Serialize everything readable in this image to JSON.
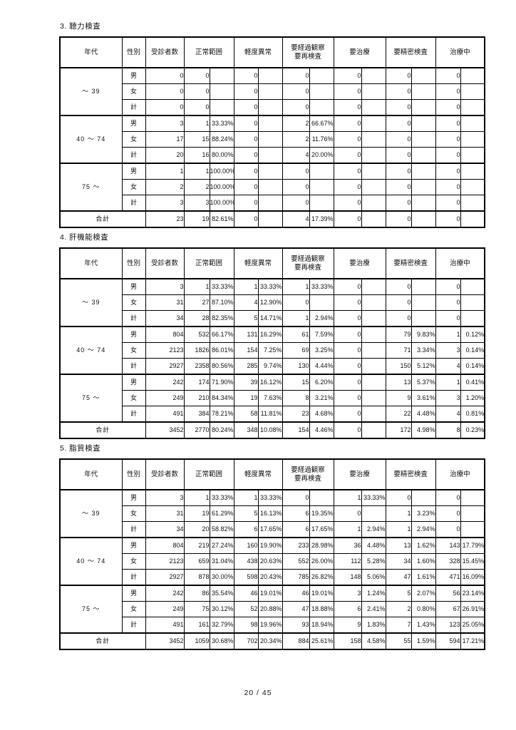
{
  "footer": {
    "page_indicator": "20 / 45"
  },
  "headers": [
    "年代",
    "性別",
    "受診者数",
    "正常範囲",
    "軽度異常",
    "要経過観察\n要再検査",
    "要治療",
    "要精密検査",
    "治療中"
  ],
  "tables": [
    {
      "title": "3. 聴力検査",
      "groups": [
        {
          "age": "～ 39",
          "rows": [
            {
              "sex": "男",
              "n": "0",
              "pairs": [
                [
                  "0",
                  ""
                ],
                [
                  "0",
                  ""
                ],
                [
                  "0",
                  ""
                ],
                [
                  "0",
                  ""
                ],
                [
                  "0",
                  ""
                ],
                [
                  "0",
                  ""
                ]
              ]
            },
            {
              "sex": "女",
              "n": "0",
              "pairs": [
                [
                  "0",
                  ""
                ],
                [
                  "0",
                  ""
                ],
                [
                  "0",
                  ""
                ],
                [
                  "0",
                  ""
                ],
                [
                  "0",
                  ""
                ],
                [
                  "0",
                  ""
                ]
              ]
            },
            {
              "sex": "計",
              "n": "0",
              "pairs": [
                [
                  "0",
                  ""
                ],
                [
                  "0",
                  ""
                ],
                [
                  "0",
                  ""
                ],
                [
                  "0",
                  ""
                ],
                [
                  "0",
                  ""
                ],
                [
                  "0",
                  ""
                ]
              ]
            }
          ]
        },
        {
          "age": "40 ～ 74",
          "rows": [
            {
              "sex": "男",
              "n": "3",
              "pairs": [
                [
                  "1",
                  "33.33%"
                ],
                [
                  "0",
                  ""
                ],
                [
                  "2",
                  "66.67%"
                ],
                [
                  "0",
                  ""
                ],
                [
                  "0",
                  ""
                ],
                [
                  "0",
                  ""
                ]
              ]
            },
            {
              "sex": "女",
              "n": "17",
              "pairs": [
                [
                  "15",
                  "88.24%"
                ],
                [
                  "0",
                  ""
                ],
                [
                  "2",
                  "11.76%"
                ],
                [
                  "0",
                  ""
                ],
                [
                  "0",
                  ""
                ],
                [
                  "0",
                  ""
                ]
              ]
            },
            {
              "sex": "計",
              "n": "20",
              "pairs": [
                [
                  "16",
                  "80.00%"
                ],
                [
                  "0",
                  ""
                ],
                [
                  "4",
                  "20.00%"
                ],
                [
                  "0",
                  ""
                ],
                [
                  "0",
                  ""
                ],
                [
                  "0",
                  ""
                ]
              ]
            }
          ]
        },
        {
          "age": "75 ～",
          "rows": [
            {
              "sex": "男",
              "n": "1",
              "pairs": [
                [
                  "1",
                  "100.00%"
                ],
                [
                  "0",
                  ""
                ],
                [
                  "0",
                  ""
                ],
                [
                  "0",
                  ""
                ],
                [
                  "0",
                  ""
                ],
                [
                  "0",
                  ""
                ]
              ]
            },
            {
              "sex": "女",
              "n": "2",
              "pairs": [
                [
                  "2",
                  "100.00%"
                ],
                [
                  "0",
                  ""
                ],
                [
                  "0",
                  ""
                ],
                [
                  "0",
                  ""
                ],
                [
                  "0",
                  ""
                ],
                [
                  "0",
                  ""
                ]
              ]
            },
            {
              "sex": "計",
              "n": "3",
              "pairs": [
                [
                  "3",
                  "100.00%"
                ],
                [
                  "0",
                  ""
                ],
                [
                  "0",
                  ""
                ],
                [
                  "0",
                  ""
                ],
                [
                  "0",
                  ""
                ],
                [
                  "0",
                  ""
                ]
              ]
            }
          ]
        }
      ],
      "total": {
        "label": "合計",
        "n": "23",
        "pairs": [
          [
            "19",
            "82.61%"
          ],
          [
            "0",
            ""
          ],
          [
            "4",
            "17.39%"
          ],
          [
            "0",
            ""
          ],
          [
            "0",
            ""
          ],
          [
            "0",
            ""
          ]
        ]
      }
    },
    {
      "title": "4. 肝機能検査",
      "groups": [
        {
          "age": "～ 39",
          "rows": [
            {
              "sex": "男",
              "n": "3",
              "pairs": [
                [
                  "1",
                  "33.33%"
                ],
                [
                  "1",
                  "33.33%"
                ],
                [
                  "1",
                  "33.33%"
                ],
                [
                  "0",
                  ""
                ],
                [
                  "0",
                  ""
                ],
                [
                  "0",
                  ""
                ]
              ]
            },
            {
              "sex": "女",
              "n": "31",
              "pairs": [
                [
                  "27",
                  "87.10%"
                ],
                [
                  "4",
                  "12.90%"
                ],
                [
                  "0",
                  ""
                ],
                [
                  "0",
                  ""
                ],
                [
                  "0",
                  ""
                ],
                [
                  "0",
                  ""
                ]
              ]
            },
            {
              "sex": "計",
              "n": "34",
              "pairs": [
                [
                  "28",
                  "82.35%"
                ],
                [
                  "5",
                  "14.71%"
                ],
                [
                  "1",
                  "2.94%"
                ],
                [
                  "0",
                  ""
                ],
                [
                  "0",
                  ""
                ],
                [
                  "0",
                  ""
                ]
              ]
            }
          ]
        },
        {
          "age": "40 ～ 74",
          "rows": [
            {
              "sex": "男",
              "n": "804",
              "pairs": [
                [
                  "532",
                  "66.17%"
                ],
                [
                  "131",
                  "16.29%"
                ],
                [
                  "61",
                  "7.59%"
                ],
                [
                  "0",
                  ""
                ],
                [
                  "79",
                  "9.83%"
                ],
                [
                  "1",
                  "0.12%"
                ]
              ]
            },
            {
              "sex": "女",
              "n": "2123",
              "pairs": [
                [
                  "1826",
                  "86.01%"
                ],
                [
                  "154",
                  "7.25%"
                ],
                [
                  "69",
                  "3.25%"
                ],
                [
                  "0",
                  ""
                ],
                [
                  "71",
                  "3.34%"
                ],
                [
                  "3",
                  "0.14%"
                ]
              ]
            },
            {
              "sex": "計",
              "n": "2927",
              "pairs": [
                [
                  "2358",
                  "80.56%"
                ],
                [
                  "285",
                  "9.74%"
                ],
                [
                  "130",
                  "4.44%"
                ],
                [
                  "0",
                  ""
                ],
                [
                  "150",
                  "5.12%"
                ],
                [
                  "4",
                  "0.14%"
                ]
              ]
            }
          ]
        },
        {
          "age": "75 ～",
          "rows": [
            {
              "sex": "男",
              "n": "242",
              "pairs": [
                [
                  "174",
                  "71.90%"
                ],
                [
                  "39",
                  "16.12%"
                ],
                [
                  "15",
                  "6.20%"
                ],
                [
                  "0",
                  ""
                ],
                [
                  "13",
                  "5.37%"
                ],
                [
                  "1",
                  "0.41%"
                ]
              ]
            },
            {
              "sex": "女",
              "n": "249",
              "pairs": [
                [
                  "210",
                  "84.34%"
                ],
                [
                  "19",
                  "7.63%"
                ],
                [
                  "8",
                  "3.21%"
                ],
                [
                  "0",
                  ""
                ],
                [
                  "9",
                  "3.61%"
                ],
                [
                  "3",
                  "1.20%"
                ]
              ]
            },
            {
              "sex": "計",
              "n": "491",
              "pairs": [
                [
                  "384",
                  "78.21%"
                ],
                [
                  "58",
                  "11.81%"
                ],
                [
                  "23",
                  "4.68%"
                ],
                [
                  "0",
                  ""
                ],
                [
                  "22",
                  "4.48%"
                ],
                [
                  "4",
                  "0.81%"
                ]
              ]
            }
          ]
        }
      ],
      "total": {
        "label": "合計",
        "n": "3452",
        "pairs": [
          [
            "2770",
            "80.24%"
          ],
          [
            "348",
            "10.08%"
          ],
          [
            "154",
            "4.46%"
          ],
          [
            "0",
            ""
          ],
          [
            "172",
            "4.98%"
          ],
          [
            "8",
            "0.23%"
          ]
        ]
      }
    },
    {
      "title": "5. 脂質検査",
      "groups": [
        {
          "age": "～ 39",
          "rows": [
            {
              "sex": "男",
              "n": "3",
              "pairs": [
                [
                  "1",
                  "33.33%"
                ],
                [
                  "1",
                  "33.33%"
                ],
                [
                  "0",
                  ""
                ],
                [
                  "1",
                  "33.33%"
                ],
                [
                  "0",
                  ""
                ],
                [
                  "0",
                  ""
                ]
              ]
            },
            {
              "sex": "女",
              "n": "31",
              "pairs": [
                [
                  "19",
                  "61.29%"
                ],
                [
                  "5",
                  "16.13%"
                ],
                [
                  "6",
                  "19.35%"
                ],
                [
                  "0",
                  ""
                ],
                [
                  "1",
                  "3.23%"
                ],
                [
                  "0",
                  ""
                ]
              ]
            },
            {
              "sex": "計",
              "n": "34",
              "pairs": [
                [
                  "20",
                  "58.82%"
                ],
                [
                  "6",
                  "17.65%"
                ],
                [
                  "6",
                  "17.65%"
                ],
                [
                  "1",
                  "2.94%"
                ],
                [
                  "1",
                  "2.94%"
                ],
                [
                  "0",
                  ""
                ]
              ]
            }
          ]
        },
        {
          "age": "40 ～ 74",
          "rows": [
            {
              "sex": "男",
              "n": "804",
              "pairs": [
                [
                  "219",
                  "27.24%"
                ],
                [
                  "160",
                  "19.90%"
                ],
                [
                  "233",
                  "28.98%"
                ],
                [
                  "36",
                  "4.48%"
                ],
                [
                  "13",
                  "1.62%"
                ],
                [
                  "143",
                  "17.79%"
                ]
              ]
            },
            {
              "sex": "女",
              "n": "2123",
              "pairs": [
                [
                  "659",
                  "31.04%"
                ],
                [
                  "438",
                  "20.63%"
                ],
                [
                  "552",
                  "26.00%"
                ],
                [
                  "112",
                  "5.28%"
                ],
                [
                  "34",
                  "1.60%"
                ],
                [
                  "328",
                  "15.45%"
                ]
              ]
            },
            {
              "sex": "計",
              "n": "2927",
              "pairs": [
                [
                  "878",
                  "30.00%"
                ],
                [
                  "598",
                  "20.43%"
                ],
                [
                  "785",
                  "26.82%"
                ],
                [
                  "148",
                  "5.06%"
                ],
                [
                  "47",
                  "1.61%"
                ],
                [
                  "471",
                  "16.09%"
                ]
              ]
            }
          ]
        },
        {
          "age": "75 ～",
          "rows": [
            {
              "sex": "男",
              "n": "242",
              "pairs": [
                [
                  "86",
                  "35.54%"
                ],
                [
                  "46",
                  "19.01%"
                ],
                [
                  "46",
                  "19.01%"
                ],
                [
                  "3",
                  "1.24%"
                ],
                [
                  "5",
                  "2.07%"
                ],
                [
                  "56",
                  "23.14%"
                ]
              ]
            },
            {
              "sex": "女",
              "n": "249",
              "pairs": [
                [
                  "75",
                  "30.12%"
                ],
                [
                  "52",
                  "20.88%"
                ],
                [
                  "47",
                  "18.88%"
                ],
                [
                  "6",
                  "2.41%"
                ],
                [
                  "2",
                  "0.80%"
                ],
                [
                  "67",
                  "26.91%"
                ]
              ]
            },
            {
              "sex": "計",
              "n": "491",
              "pairs": [
                [
                  "161",
                  "32.79%"
                ],
                [
                  "98",
                  "19.96%"
                ],
                [
                  "93",
                  "18.94%"
                ],
                [
                  "9",
                  "1.83%"
                ],
                [
                  "7",
                  "1.43%"
                ],
                [
                  "123",
                  "25.05%"
                ]
              ]
            }
          ]
        }
      ],
      "total": {
        "label": "合計",
        "n": "3452",
        "pairs": [
          [
            "1059",
            "30.68%"
          ],
          [
            "702",
            "20.34%"
          ],
          [
            "884",
            "25.61%"
          ],
          [
            "158",
            "4.58%"
          ],
          [
            "55",
            "1.59%"
          ],
          [
            "594",
            "17.21%"
          ]
        ]
      }
    }
  ]
}
